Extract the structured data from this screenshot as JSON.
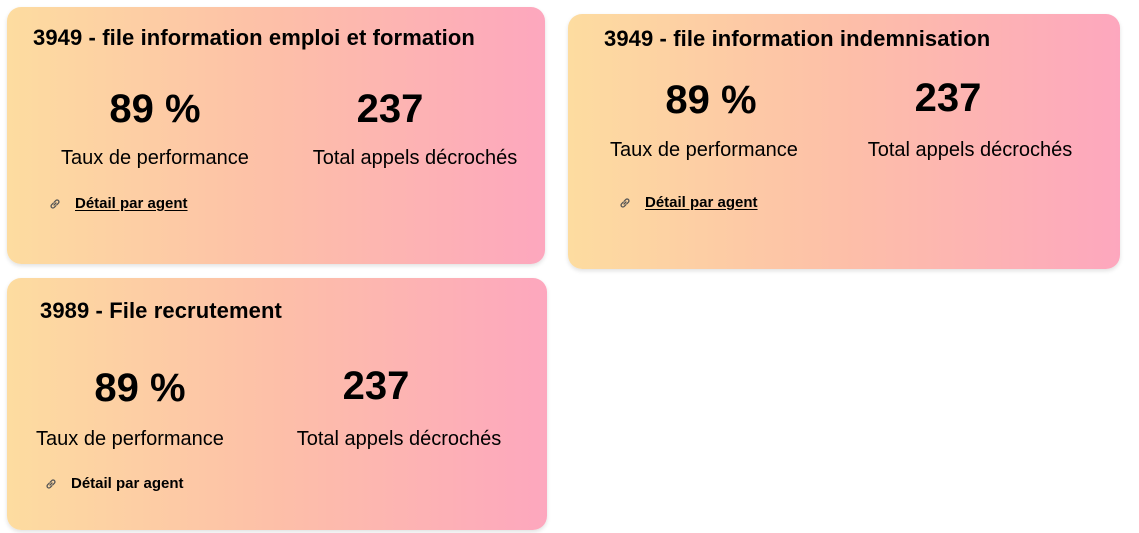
{
  "cards": [
    {
      "title": "3949 - file information emploi et formation",
      "performance_value": "89 %",
      "performance_label": "Taux de performance",
      "calls_value": "237",
      "calls_label": "Total appels décrochés",
      "link_label": "Détail par agent",
      "link_icon": "link-icon"
    },
    {
      "title": "3949 - file information indemnisation",
      "performance_value": "89 %",
      "performance_label": "Taux de performance",
      "calls_value": "237",
      "calls_label": "Total appels décrochés",
      "link_label": "Détail par agent",
      "link_icon": "link-icon"
    },
    {
      "title": "3989 - File recrutement",
      "performance_value": "89 %",
      "performance_label": "Taux de performance",
      "calls_value": "237",
      "calls_label": "Total appels décrochés",
      "link_label": "Détail par agent",
      "link_icon": "link-icon"
    }
  ],
  "colors": {
    "gradient_start": "#fddca0",
    "gradient_end": "#fda7be",
    "text": "#000000"
  }
}
